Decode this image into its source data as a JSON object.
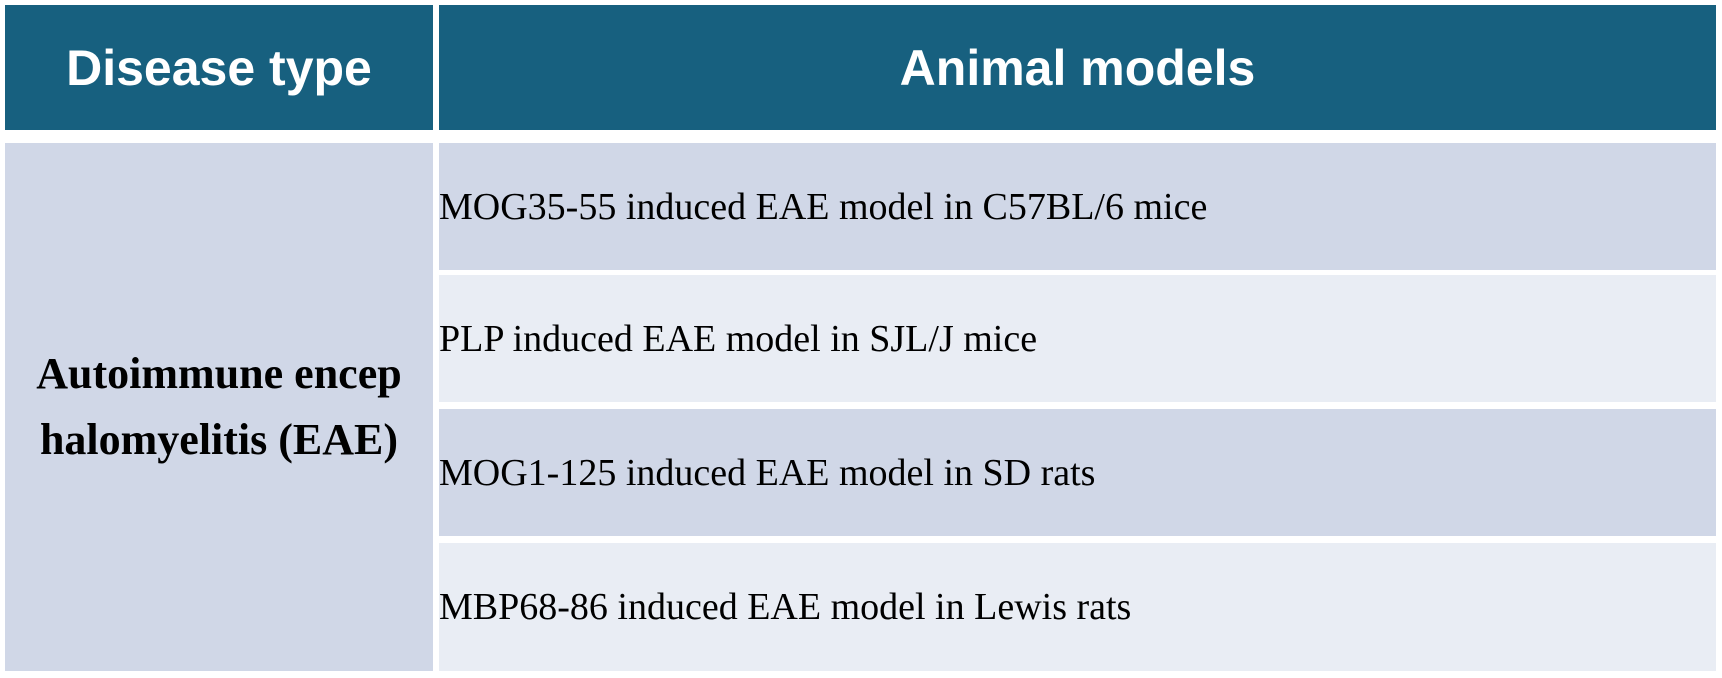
{
  "header": {
    "disease_type": "Disease type",
    "animal_models": "Animal models"
  },
  "disease": {
    "name": "Autoimmune encephalomyelitis (EAE)"
  },
  "models": [
    "MOG35-55 induced EAE model in C57BL/6 mice",
    "PLP induced EAE model in SJL/J mice",
    "MOG1-125 induced EAE model in SD rats",
    "MBP68-86 induced EAE model in Lewis rats"
  ],
  "colors": {
    "header_bg": "#17607f",
    "row_dark": "#d0d7e7",
    "row_light": "#e9edf4"
  }
}
